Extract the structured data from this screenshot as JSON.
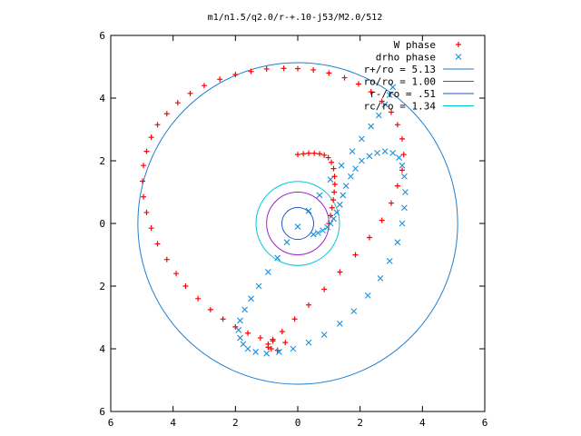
{
  "chart_data": {
    "type": "scatter",
    "title": "m1/n1.5/q2.0/r-+.10-j53/M2.0/512",
    "xlabel": "",
    "ylabel": "",
    "xlim": [
      -6,
      6
    ],
    "ylim": [
      -6,
      6
    ],
    "x_tick_values": [
      -6,
      -4,
      -2,
      0,
      2,
      4,
      6
    ],
    "x_tick_labels": [
      "6",
      "4",
      "2",
      "0",
      "2",
      "4",
      "6"
    ],
    "y_tick_values": [
      6,
      4,
      2,
      0,
      -2,
      -4,
      -6
    ],
    "y_tick_labels": [
      "6",
      "4",
      "2",
      "0",
      "2",
      "4",
      "6"
    ],
    "grid": false,
    "legend_position": "top-right",
    "circles": [
      {
        "name": "r+/ro = 5.13",
        "radius": 5.13,
        "color": "#1f7fd0"
      },
      {
        "name": "ro/ro = 1.00",
        "radius": 1.0,
        "color": "#a020c8"
      },
      {
        "name": "r-/ro = .51",
        "radius": 0.51,
        "color": "#1f55c8"
      },
      {
        "name": "rc/ro = 1.34",
        "radius": 1.34,
        "color": "#00c8d8"
      }
    ],
    "series": [
      {
        "name": "W phase",
        "marker": "+",
        "color": "#ff0000",
        "x": [
          1.0,
          1.05,
          1.1,
          1.14,
          1.17,
          1.19,
          1.18,
          1.15,
          1.08,
          0.98,
          0.85,
          0.7,
          0.53,
          0.35,
          0.18,
          0.0,
          -0.4,
          -0.8,
          -1.2,
          -1.6,
          -2.0,
          -2.4,
          -2.8,
          -3.2,
          -3.6,
          -3.9,
          -4.2,
          -4.5,
          -4.7,
          -4.85,
          -4.95,
          -4.98,
          -4.95,
          -4.85,
          -4.7,
          -4.5,
          -4.2,
          -3.85,
          -3.45,
          -3.0,
          -2.5,
          -2.0,
          -1.5,
          -1.0,
          -0.45,
          0.0,
          0.5,
          1.0,
          1.5,
          1.95,
          2.35,
          2.7,
          3.0,
          3.2,
          3.35,
          3.4,
          3.35,
          3.2,
          3.0,
          2.7,
          2.3,
          1.85,
          1.35,
          0.85,
          0.35,
          -0.1,
          -0.5,
          -0.8,
          -0.95,
          -0.95,
          -0.85,
          -0.65
        ],
        "y": [
          0.0,
          0.25,
          0.5,
          0.75,
          1.0,
          1.25,
          1.5,
          1.75,
          1.95,
          2.1,
          2.18,
          2.22,
          2.24,
          2.24,
          2.22,
          2.2,
          -3.8,
          -3.75,
          -3.65,
          -3.5,
          -3.3,
          -3.05,
          -2.75,
          -2.4,
          -2.0,
          -1.6,
          -1.15,
          -0.65,
          -0.15,
          0.35,
          0.85,
          1.35,
          1.85,
          2.3,
          2.75,
          3.15,
          3.5,
          3.85,
          4.15,
          4.4,
          4.6,
          4.75,
          4.85,
          4.93,
          4.95,
          4.94,
          4.9,
          4.8,
          4.65,
          4.45,
          4.2,
          3.9,
          3.55,
          3.15,
          2.7,
          2.2,
          1.7,
          1.2,
          0.65,
          0.1,
          -0.45,
          -1.0,
          -1.55,
          -2.1,
          -2.6,
          -3.05,
          -3.45,
          -3.7,
          -3.85,
          -3.95,
          -4.0,
          -4.05
        ]
      },
      {
        "name": "drho phase",
        "marker": "x",
        "color": "#1f8fd8",
        "x": [
          0.5,
          0.65,
          0.8,
          0.95,
          1.05,
          1.15,
          1.25,
          1.35,
          1.45,
          1.55,
          1.7,
          1.85,
          2.05,
          2.3,
          2.55,
          2.8,
          3.05,
          3.25,
          3.35,
          3.42,
          3.45,
          3.42,
          3.35,
          3.2,
          2.95,
          2.65,
          2.25,
          1.8,
          1.35,
          0.85,
          0.35,
          -0.15,
          -0.6,
          -1.0,
          -1.35,
          -1.6,
          -1.75,
          -1.85,
          -1.9,
          -1.85,
          -1.7,
          -1.5,
          -1.25,
          -0.95,
          -0.65,
          -0.35,
          0.0,
          0.35,
          0.7,
          1.05,
          1.4,
          1.75,
          2.05,
          2.35,
          2.6,
          2.8,
          2.95,
          3.05
        ],
        "y": [
          -0.35,
          -0.3,
          -0.22,
          -0.12,
          0.0,
          0.15,
          0.35,
          0.6,
          0.9,
          1.2,
          1.5,
          1.75,
          2.0,
          2.15,
          2.25,
          2.3,
          2.25,
          2.1,
          1.85,
          1.5,
          1.0,
          0.5,
          0.0,
          -0.6,
          -1.2,
          -1.75,
          -2.3,
          -2.8,
          -3.2,
          -3.55,
          -3.8,
          -4.0,
          -4.1,
          -4.15,
          -4.1,
          -4.0,
          -3.85,
          -3.65,
          -3.4,
          -3.1,
          -2.75,
          -2.4,
          -2.0,
          -1.55,
          -1.1,
          -0.6,
          -0.1,
          0.4,
          0.9,
          1.4,
          1.85,
          2.3,
          2.7,
          3.1,
          3.45,
          3.8,
          4.1,
          4.35
        ]
      }
    ]
  }
}
